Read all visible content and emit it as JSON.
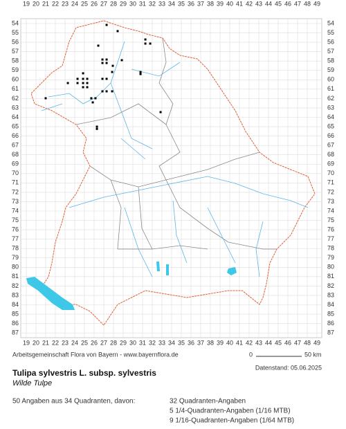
{
  "map": {
    "columns": [
      19,
      20,
      21,
      22,
      23,
      24,
      25,
      26,
      27,
      28,
      29,
      30,
      31,
      32,
      33,
      34,
      35,
      36,
      37,
      38,
      39,
      40,
      41,
      42,
      43,
      44,
      45,
      46,
      47,
      48,
      49
    ],
    "rows": [
      54,
      55,
      56,
      57,
      58,
      59,
      60,
      61,
      62,
      63,
      64,
      65,
      66,
      67,
      68,
      69,
      70,
      71,
      72,
      73,
      74,
      75,
      76,
      77,
      78,
      79,
      80,
      81,
      82,
      83,
      84,
      85,
      86,
      87
    ],
    "points": [
      [
        27.29,
        54.15
      ],
      [
        28.43,
        54.81
      ],
      [
        31.29,
        55.7
      ],
      [
        31.79,
        56.14
      ],
      [
        31.29,
        56.14
      ],
      [
        26.43,
        56.36
      ],
      [
        26.86,
        57.84
      ],
      [
        27.29,
        57.84
      ],
      [
        26.86,
        58.21
      ],
      [
        27.29,
        58.21
      ],
      [
        28.86,
        57.91
      ],
      [
        27.93,
        58.51
      ],
      [
        30.79,
        59.17
      ],
      [
        30.79,
        59.39
      ],
      [
        24.86,
        59.31
      ],
      [
        23.29,
        60.35
      ],
      [
        24.29,
        59.9
      ],
      [
        24.86,
        59.9
      ],
      [
        25.29,
        59.9
      ],
      [
        24.86,
        60.35
      ],
      [
        25.29,
        60.35
      ],
      [
        24.29,
        60.35
      ],
      [
        26.86,
        59.9
      ],
      [
        27.29,
        59.9
      ],
      [
        27.86,
        59.17
      ],
      [
        24.86,
        60.79
      ],
      [
        25.29,
        60.79
      ],
      [
        26.86,
        61.23
      ],
      [
        27.29,
        61.23
      ],
      [
        27.86,
        61.23
      ],
      [
        25.71,
        61.97
      ],
      [
        26.14,
        61.97
      ],
      [
        25.86,
        62.41
      ],
      [
        21,
        61.97
      ],
      [
        26.29,
        65.0
      ],
      [
        26.29,
        65.24
      ],
      [
        32.86,
        63.45
      ]
    ],
    "credit": "Arbeitsgemeinschaft Flora von Bayern - www.bayernflora.de",
    "scale_start": "0",
    "scale_end": "50 km",
    "date": "Datenstand: 05.06.2025",
    "title": "Tulipa sylvestris L. subsp. sylvestris",
    "subtitle": "Wilde Tulpe",
    "summary": "50 Angaben aus 34 Quadranten, davon:",
    "counts": [
      "32 Quadranten-Angaben",
      "5 1/4-Quadranten-Angaben (1/16 MTB)",
      "9 1/16-Quadranten-Angaben (1/64 MTB)"
    ]
  }
}
